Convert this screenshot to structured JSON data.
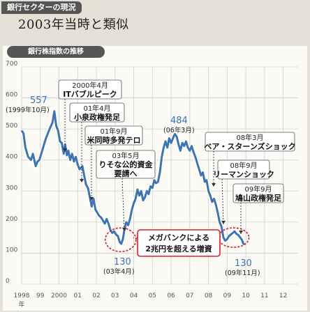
{
  "header": {
    "tag": "銀行セクターの現況",
    "headline": "2003年当時と類似"
  },
  "chart_data": {
    "type": "line",
    "title": "銀行株指数の推移",
    "ylim": [
      0,
      700
    ],
    "yticks": [
      "0",
      "100",
      "200",
      "300",
      "400",
      "500",
      "600",
      "700"
    ],
    "x_ticks": [
      "1998",
      "99",
      "2000",
      "01",
      "02",
      "03",
      "04",
      "05",
      "06",
      "07",
      "08",
      "09",
      "10",
      "11",
      "12"
    ],
    "x_unit": "年",
    "xlim": [
      1998.0,
      2012.8
    ],
    "grid": true,
    "series": [
      {
        "values": [
          [
            1998.0,
            495
          ],
          [
            1998.1,
            485
          ],
          [
            1998.2,
            440
          ],
          [
            1998.35,
            410
          ],
          [
            1998.5,
            400
          ],
          [
            1998.6,
            420
          ],
          [
            1998.75,
            380
          ],
          [
            1998.85,
            395
          ],
          [
            1998.95,
            400
          ],
          [
            1999.1,
            430
          ],
          [
            1999.3,
            470
          ],
          [
            1999.5,
            500
          ],
          [
            1999.65,
            520
          ],
          [
            1999.75,
            557
          ],
          [
            1999.85,
            510
          ],
          [
            1999.95,
            495
          ],
          [
            2000.05,
            460
          ],
          [
            2000.15,
            455
          ],
          [
            2000.25,
            420
          ],
          [
            2000.33,
            450
          ],
          [
            2000.42,
            415
          ],
          [
            2000.5,
            430
          ],
          [
            2000.6,
            400
          ],
          [
            2000.7,
            420
          ],
          [
            2000.8,
            395
          ],
          [
            2000.9,
            410
          ],
          [
            2001.0,
            385
          ],
          [
            2001.1,
            370
          ],
          [
            2001.25,
            380
          ],
          [
            2001.35,
            350
          ],
          [
            2001.45,
            320
          ],
          [
            2001.55,
            310
          ],
          [
            2001.65,
            280
          ],
          [
            2001.75,
            250
          ],
          [
            2001.85,
            275
          ],
          [
            2001.95,
            240
          ],
          [
            2002.05,
            230
          ],
          [
            2002.15,
            220
          ],
          [
            2002.25,
            215
          ],
          [
            2002.35,
            205
          ],
          [
            2002.45,
            195
          ],
          [
            2002.55,
            210
          ],
          [
            2002.65,
            195
          ],
          [
            2002.75,
            175
          ],
          [
            2002.85,
            165
          ],
          [
            2002.95,
            170
          ],
          [
            2003.05,
            160
          ],
          [
            2003.15,
            155
          ],
          [
            2003.25,
            135
          ],
          [
            2003.33,
            130
          ],
          [
            2003.42,
            145
          ],
          [
            2003.5,
            175
          ],
          [
            2003.6,
            200
          ],
          [
            2003.7,
            190
          ],
          [
            2003.8,
            210
          ],
          [
            2003.9,
            240
          ],
          [
            2004.0,
            260
          ],
          [
            2004.1,
            275
          ],
          [
            2004.2,
            305
          ],
          [
            2004.3,
            285
          ],
          [
            2004.4,
            300
          ],
          [
            2004.5,
            270
          ],
          [
            2004.6,
            280
          ],
          [
            2004.7,
            300
          ],
          [
            2004.8,
            290
          ],
          [
            2004.9,
            315
          ],
          [
            2005.0,
            310
          ],
          [
            2005.1,
            335
          ],
          [
            2005.2,
            325
          ],
          [
            2005.3,
            330
          ],
          [
            2005.4,
            360
          ],
          [
            2005.5,
            410
          ],
          [
            2005.6,
            440
          ],
          [
            2005.7,
            460
          ],
          [
            2005.8,
            440
          ],
          [
            2005.9,
            470
          ],
          [
            2006.0,
            455
          ],
          [
            2006.1,
            470
          ],
          [
            2006.2,
            484
          ],
          [
            2006.3,
            475
          ],
          [
            2006.4,
            450
          ],
          [
            2006.5,
            430
          ],
          [
            2006.6,
            455
          ],
          [
            2006.7,
            445
          ],
          [
            2006.8,
            460
          ],
          [
            2006.9,
            440
          ],
          [
            2007.0,
            430
          ],
          [
            2007.1,
            445
          ],
          [
            2007.2,
            425
          ],
          [
            2007.3,
            410
          ],
          [
            2007.4,
            390
          ],
          [
            2007.5,
            370
          ],
          [
            2007.6,
            350
          ],
          [
            2007.7,
            360
          ],
          [
            2007.8,
            330
          ],
          [
            2007.9,
            335
          ],
          [
            2008.0,
            300
          ],
          [
            2008.1,
            285
          ],
          [
            2008.2,
            265
          ],
          [
            2008.3,
            275
          ],
          [
            2008.4,
            255
          ],
          [
            2008.5,
            230
          ],
          [
            2008.6,
            200
          ],
          [
            2008.7,
            185
          ],
          [
            2008.8,
            150
          ],
          [
            2008.9,
            140
          ],
          [
            2009.0,
            145
          ],
          [
            2009.1,
            155
          ],
          [
            2009.2,
            160
          ],
          [
            2009.3,
            165
          ],
          [
            2009.4,
            170
          ],
          [
            2009.5,
            162
          ],
          [
            2009.6,
            158
          ],
          [
            2009.7,
            150
          ],
          [
            2009.8,
            142
          ],
          [
            2009.87,
            130
          ],
          [
            2009.93,
            130
          ]
        ]
      }
    ],
    "labels": [
      {
        "value": "557",
        "sub": "(1999年10月)"
      },
      {
        "value": "484",
        "sub": "(06年3月)"
      },
      {
        "value": "130",
        "sub": "(03年4月)"
      },
      {
        "value": "130",
        "sub": "(09年11月)"
      }
    ],
    "events": [
      {
        "date": "2000年4月",
        "text": "ITバブルピーク"
      },
      {
        "date": "01年4月",
        "text": "小泉政権発足"
      },
      {
        "date": "01年9月",
        "text": "米同時多発テロ"
      },
      {
        "date": "03年5月",
        "text1": "りそな公的資金",
        "text2": "要請へ"
      },
      {
        "date": "08年3月",
        "text": "ベア・スターンズショック"
      },
      {
        "date": "08年9月",
        "text": "リーマンショック"
      },
      {
        "date": "09年9月",
        "text": "鳩山政権発足"
      }
    ],
    "callout": {
      "line1": "メガバンクによる",
      "line2": "2兆円を超える増資"
    },
    "colors": {
      "line": "#3d74b6",
      "line_glow": "#ffffff",
      "highlight": "#d8202a",
      "grid": "#cfcfcf"
    }
  }
}
